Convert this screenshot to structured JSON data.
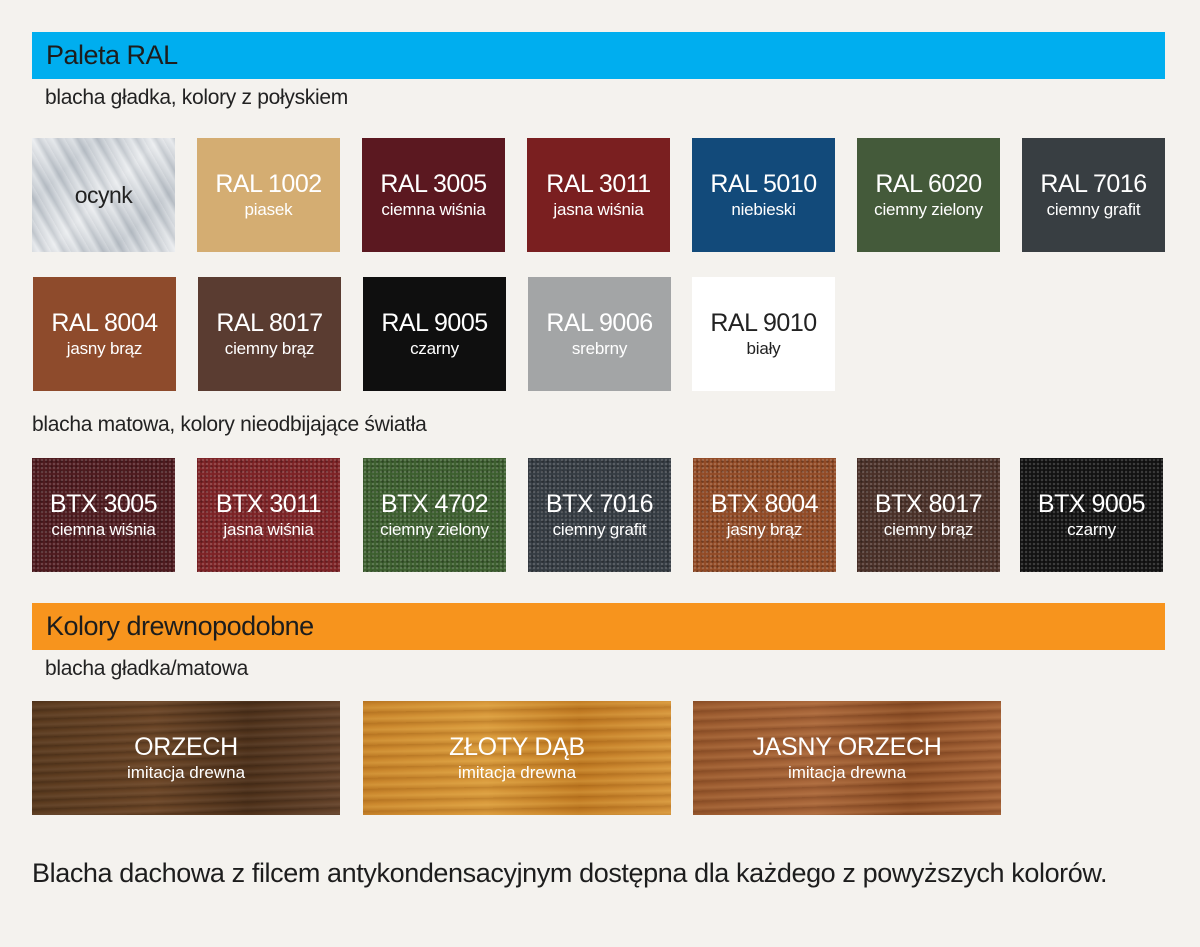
{
  "header_ral": "Paleta RAL",
  "sub_glossy": "blacha gładka, kolory z połyskiem",
  "ral_row1": [
    {
      "code": "",
      "name": "ocynk",
      "color": "#d3d7db"
    },
    {
      "code": "RAL 1002",
      "name": "piasek",
      "color": "#d4ad72"
    },
    {
      "code": "RAL 3005",
      "name": "ciemna wiśnia",
      "color": "#5b1820"
    },
    {
      "code": "RAL 3011",
      "name": "jasna wiśnia",
      "color": "#7a1f20"
    },
    {
      "code": "RAL 5010",
      "name": "niebieski",
      "color": "#124a7a"
    },
    {
      "code": "RAL 6020",
      "name": "ciemny zielony",
      "color": "#445a3a"
    },
    {
      "code": "RAL 7016",
      "name": "ciemny grafit",
      "color": "#383e42"
    }
  ],
  "ral_row2": [
    {
      "code": "RAL 8004",
      "name": "jasny brąz",
      "color": "#8e4b2c"
    },
    {
      "code": "RAL 8017",
      "name": "ciemny brąz",
      "color": "#5a3c31"
    },
    {
      "code": "RAL 9005",
      "name": "czarny",
      "color": "#0f0f0f"
    },
    {
      "code": "RAL 9006",
      "name": "srebrny",
      "color": "#a3a5a6"
    },
    {
      "code": "RAL 9010",
      "name": "biały",
      "color": "#ffffff"
    }
  ],
  "sub_matte": "blacha matowa, kolory nieodbijające światła",
  "btx_row": [
    {
      "code": "BTX 3005",
      "name": "ciemna wiśnia",
      "color": "#4e1a1e"
    },
    {
      "code": "BTX 3011",
      "name": "jasna wiśnia",
      "color": "#7d2225"
    },
    {
      "code": "BTX 4702",
      "name": "ciemny zielony",
      "color": "#3c5e2e"
    },
    {
      "code": "BTX 7016",
      "name": "ciemny grafit",
      "color": "#343b42"
    },
    {
      "code": "BTX 8004",
      "name": "jasny brąz",
      "color": "#914a25"
    },
    {
      "code": "BTX 8017",
      "name": "ciemny brąz",
      "color": "#4a3028"
    },
    {
      "code": "BTX 9005",
      "name": "czarny",
      "color": "#121212"
    }
  ],
  "header_wood": "Kolory drewnopodobne",
  "sub_wood": "blacha gładka/matowa",
  "wood": [
    {
      "code": "ORZECH",
      "name": "imitacja drewna"
    },
    {
      "code": "ZŁOTY DĄB",
      "name": "imitacja drewna"
    },
    {
      "code": "JASNY ORZECH",
      "name": "imitacja drewna"
    }
  ],
  "footer": "Blacha dachowa z filcem antykondensacyjnym dostępna dla każdego z powyższych kolorów."
}
